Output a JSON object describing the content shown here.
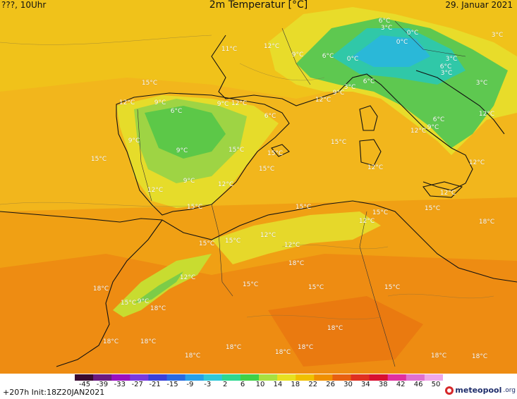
{
  "header": {
    "left": "???, 10Uhr",
    "title": "2m Temperatur [°C]",
    "date": "29. Januar 2021"
  },
  "footer": {
    "run_info": "+207h  Init:18Z20JAN2021",
    "brand": "meteopool",
    "brand_suffix": ".org"
  },
  "legend": {
    "ticks": [
      "-45",
      "-39",
      "-33",
      "-27",
      "-21",
      "-15",
      "-9",
      "-3",
      "2",
      "6",
      "10",
      "14",
      "18",
      "22",
      "26",
      "30",
      "34",
      "38",
      "42",
      "46",
      "50"
    ],
    "colors": [
      "#3a0a30",
      "#6a1a80",
      "#9a10c0",
      "#7a3ae0",
      "#3a40d8",
      "#2a6ae0",
      "#28a0e8",
      "#30c8d8",
      "#2ed890",
      "#40d048",
      "#a8e040",
      "#e8e020",
      "#f0c000",
      "#f09000",
      "#e86010",
      "#e03020",
      "#d81030",
      "#e030a0",
      "#e070d0",
      "#f0a8e8"
    ]
  },
  "temperature_labels": [
    {
      "text": "6°C"
    },
    {
      "text": "3°C"
    },
    {
      "text": "0°C"
    },
    {
      "text": "0°C"
    },
    {
      "text": "3°C"
    },
    {
      "text": "11°C"
    },
    {
      "text": "12°C"
    },
    {
      "text": "9°C"
    },
    {
      "text": "6°C"
    },
    {
      "text": "0°C"
    },
    {
      "text": "3°C"
    },
    {
      "text": "6°C"
    },
    {
      "text": "3°C"
    },
    {
      "text": "3°C"
    },
    {
      "text": "15°C"
    },
    {
      "text": "12°C"
    },
    {
      "text": "9°C"
    },
    {
      "text": "6°C"
    },
    {
      "text": "9°C"
    },
    {
      "text": "12°C"
    },
    {
      "text": "6°C"
    },
    {
      "text": "12°C"
    },
    {
      "text": "9°C"
    },
    {
      "text": "6°C"
    },
    {
      "text": "3°C"
    },
    {
      "text": "12°C"
    },
    {
      "text": "6°C"
    },
    {
      "text": "12°C"
    },
    {
      "text": "9°C"
    },
    {
      "text": "15°C"
    },
    {
      "text": "9°C"
    },
    {
      "text": "9°C"
    },
    {
      "text": "15°C"
    },
    {
      "text": "15°C"
    },
    {
      "text": "15°C"
    },
    {
      "text": "12°C"
    },
    {
      "text": "9°C"
    },
    {
      "text": "12°C"
    },
    {
      "text": "12°C"
    },
    {
      "text": "12°C"
    },
    {
      "text": "12°C"
    },
    {
      "text": "15°C"
    },
    {
      "text": "15°C"
    },
    {
      "text": "15°C"
    },
    {
      "text": "15°C"
    },
    {
      "text": "12°C"
    },
    {
      "text": "15°C"
    },
    {
      "text": "12°C"
    },
    {
      "text": "18°C"
    },
    {
      "text": "15°C"
    },
    {
      "text": "12°C"
    },
    {
      "text": "15°C"
    },
    {
      "text": "12°C"
    },
    {
      "text": "18°C"
    },
    {
      "text": "15°C"
    },
    {
      "text": "18°C"
    },
    {
      "text": "15°C"
    },
    {
      "text": "15°C"
    },
    {
      "text": "9°C"
    },
    {
      "text": "15°C"
    },
    {
      "text": "18°C"
    },
    {
      "text": "18°C"
    },
    {
      "text": "18°C"
    },
    {
      "text": "18°C"
    },
    {
      "text": "18°C"
    },
    {
      "text": "18°C"
    },
    {
      "text": "18°C"
    },
    {
      "text": "18°C"
    },
    {
      "text": "18°C"
    },
    {
      "text": "18°C"
    }
  ]
}
